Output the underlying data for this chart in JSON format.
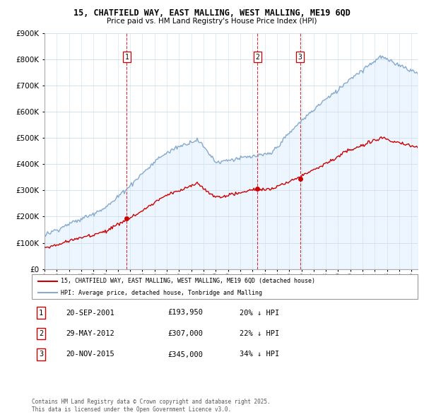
{
  "title": "15, CHATFIELD WAY, EAST MALLING, WEST MALLING, ME19 6QD",
  "subtitle": "Price paid vs. HM Land Registry's House Price Index (HPI)",
  "legend_line1": "15, CHATFIELD WAY, EAST MALLING, WEST MALLING, ME19 6QD (detached house)",
  "legend_line2": "HPI: Average price, detached house, Tonbridge and Malling",
  "footer1": "Contains HM Land Registry data © Crown copyright and database right 2025.",
  "footer2": "This data is licensed under the Open Government Licence v3.0.",
  "transactions": [
    {
      "num": 1,
      "date": "20-SEP-2001",
      "price": "£193,950",
      "pct": "20% ↓ HPI",
      "year": 2001.72
    },
    {
      "num": 2,
      "date": "29-MAY-2012",
      "price": "£307,000",
      "pct": "22% ↓ HPI",
      "year": 2012.41
    },
    {
      "num": 3,
      "date": "20-NOV-2015",
      "price": "£345,000",
      "pct": "34% ↓ HPI",
      "year": 2015.89
    }
  ],
  "transaction_prices": [
    193950,
    307000,
    345000
  ],
  "red_color": "#cc0000",
  "blue_color": "#88aacc",
  "blue_fill": "#ddeeff",
  "grid_color": "#ccddee",
  "background_color": "#ffffff",
  "ylim": [
    0,
    900000
  ],
  "xlim_start": 1995,
  "xlim_end": 2025.5
}
